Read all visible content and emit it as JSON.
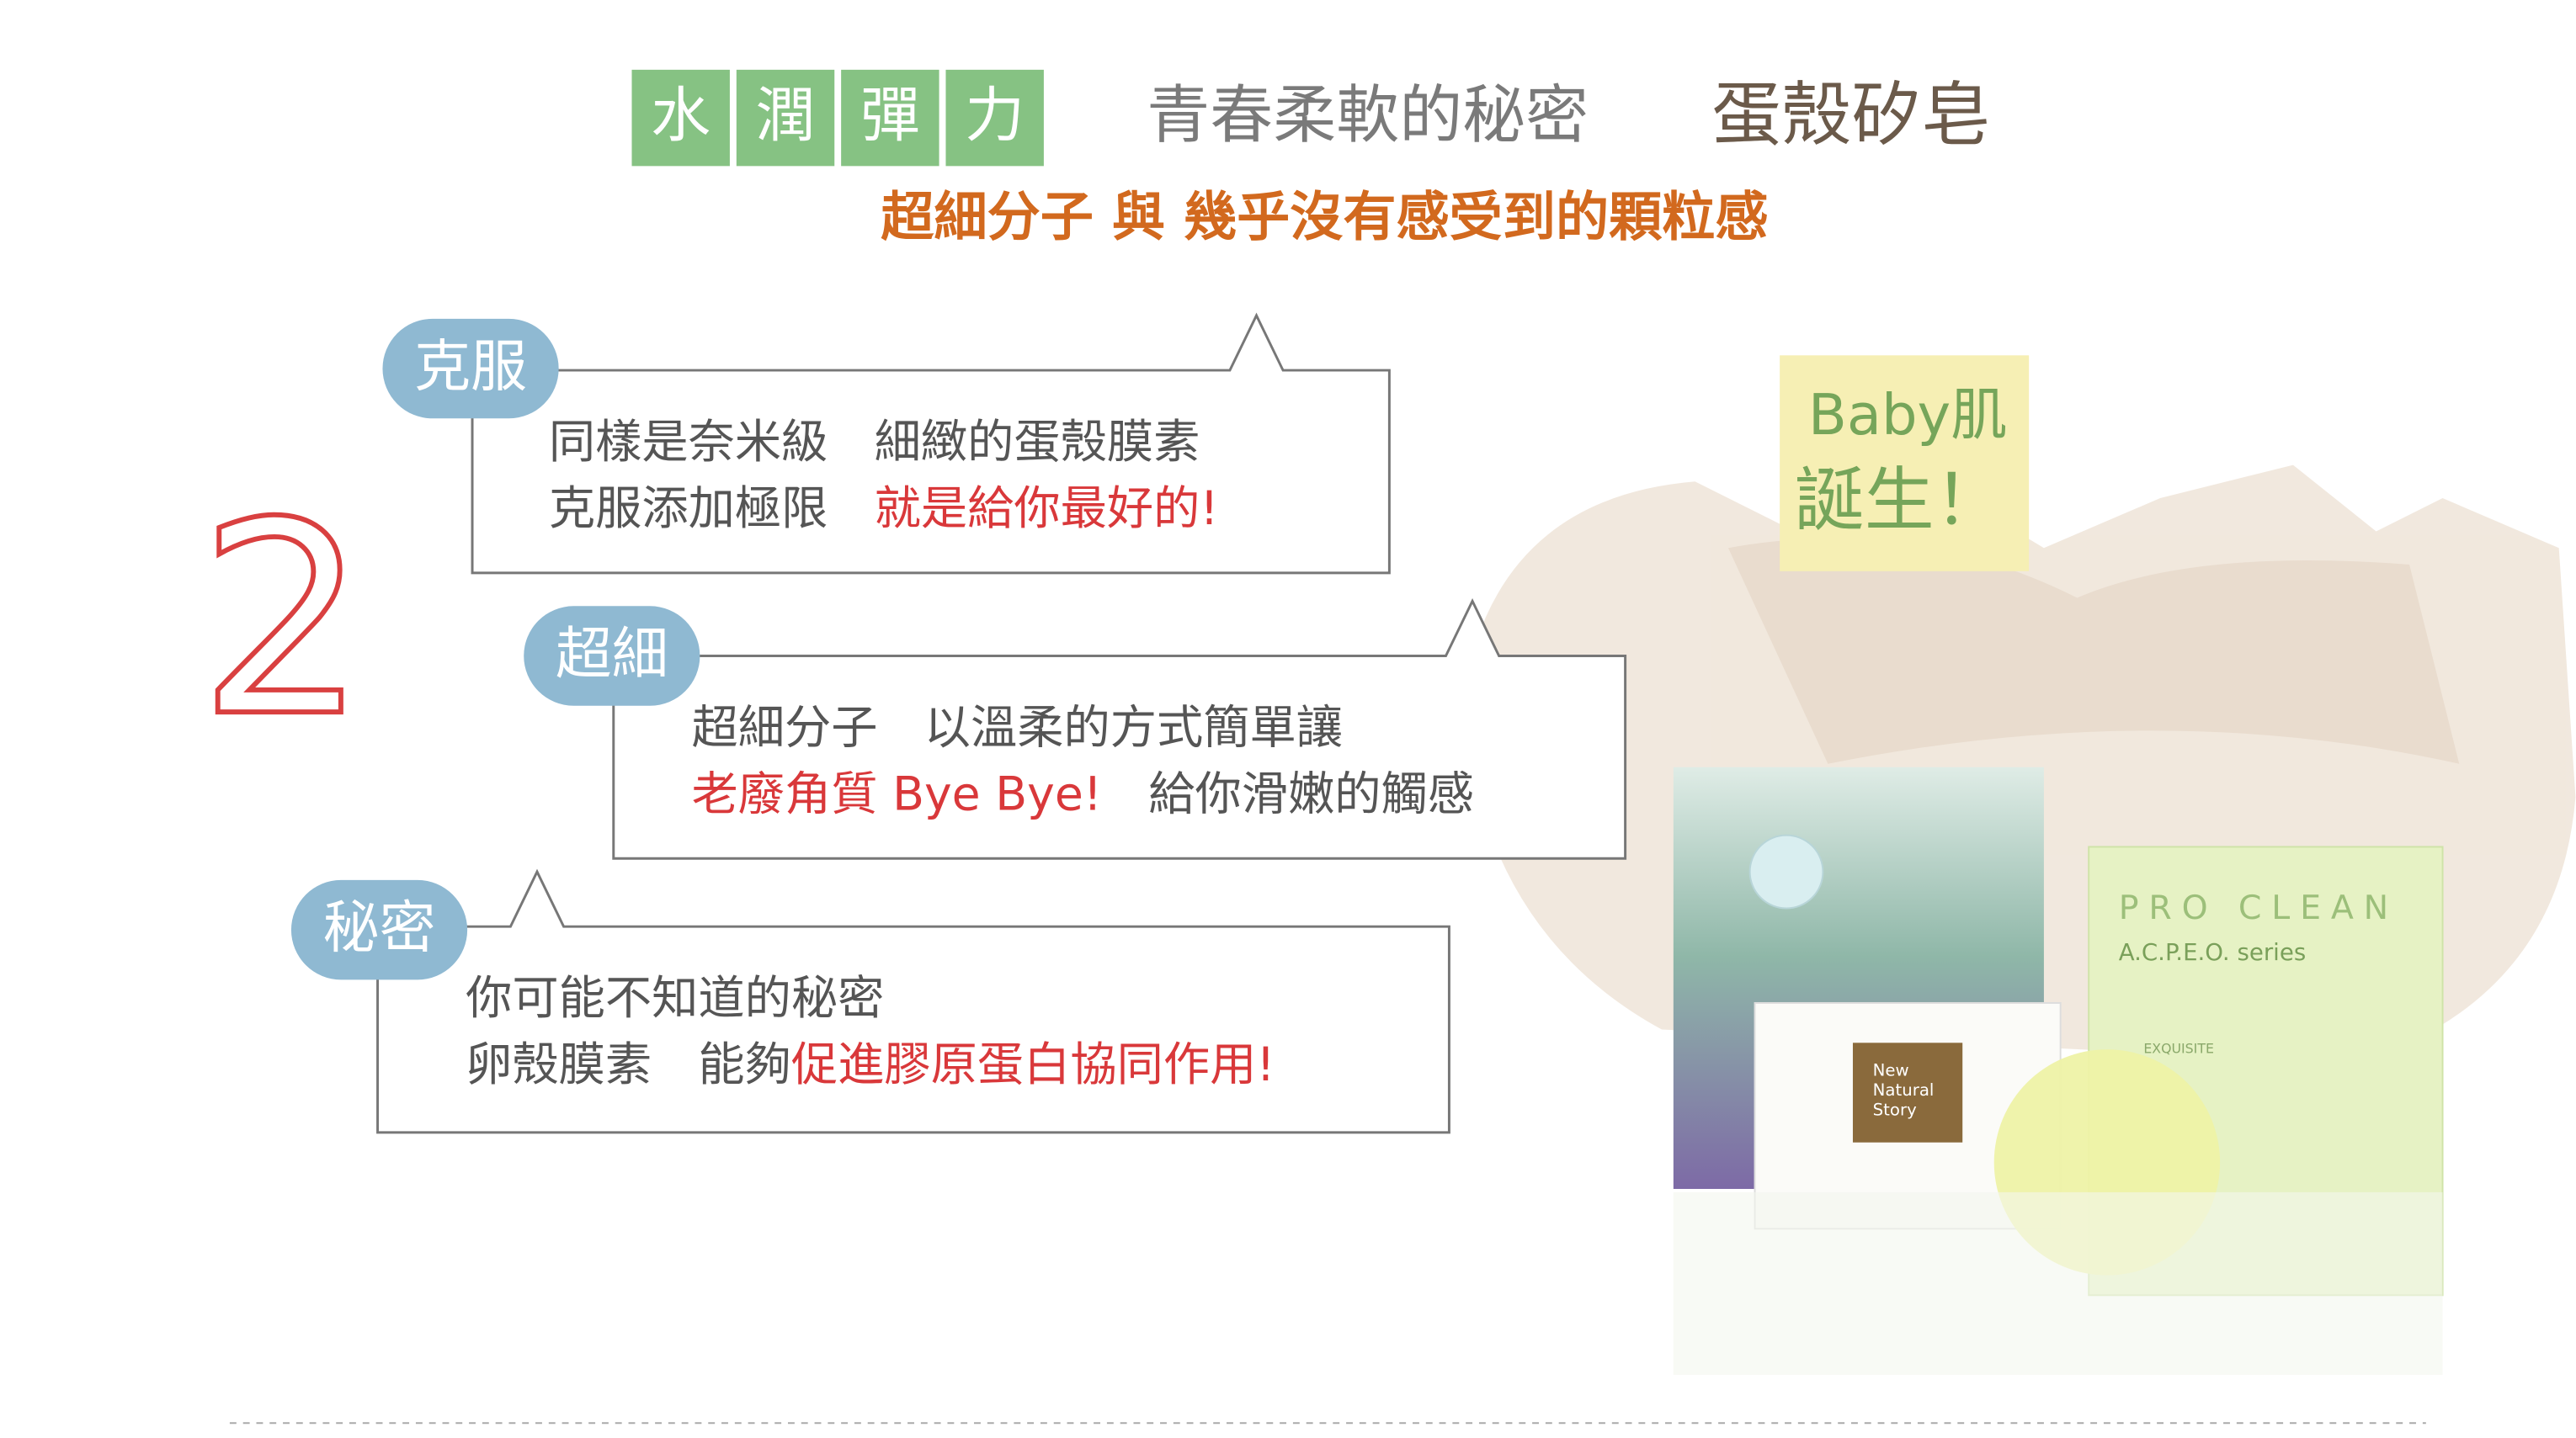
{
  "header": {
    "badges": [
      "水",
      "潤",
      "彈",
      "力"
    ],
    "tagline": "青春柔軟的秘密",
    "product": "蛋殼矽皂",
    "subtitle": "超細分子 與 幾乎沒有感受到的顆粒感"
  },
  "section_number": "2",
  "bubbles": [
    {
      "tag": "克服",
      "lines": [
        [
          {
            "text": "同樣是奈米級　細緻的蛋殼膜素"
          }
        ],
        [
          {
            "text": "克服添加極限　"
          },
          {
            "text": "就是給你最好的!",
            "accent": true
          }
        ]
      ]
    },
    {
      "tag": "超細",
      "lines": [
        [
          {
            "text": "超細分子　以溫柔的方式簡單讓"
          }
        ],
        [
          {
            "text": "老廢角質 Bye Bye!",
            "accent": true
          },
          {
            "text": "　給你滑嫩的觸感"
          }
        ]
      ]
    },
    {
      "tag": "秘密",
      "lines": [
        [
          {
            "text": "你可能不知道的秘密"
          }
        ],
        [
          {
            "text": "卵殼膜素　能夠"
          },
          {
            "text": "促進膠原蛋白協同作用!",
            "accent": true
          }
        ]
      ]
    }
  ],
  "badge": {
    "line1": "Baby肌",
    "line2": "誕生！"
  },
  "product_image": {
    "brand": "PRO CLEAN",
    "series": "A.C.P.E.O. series",
    "card": [
      "New",
      "Natural",
      "Story"
    ],
    "label": "EXQUISITE"
  }
}
